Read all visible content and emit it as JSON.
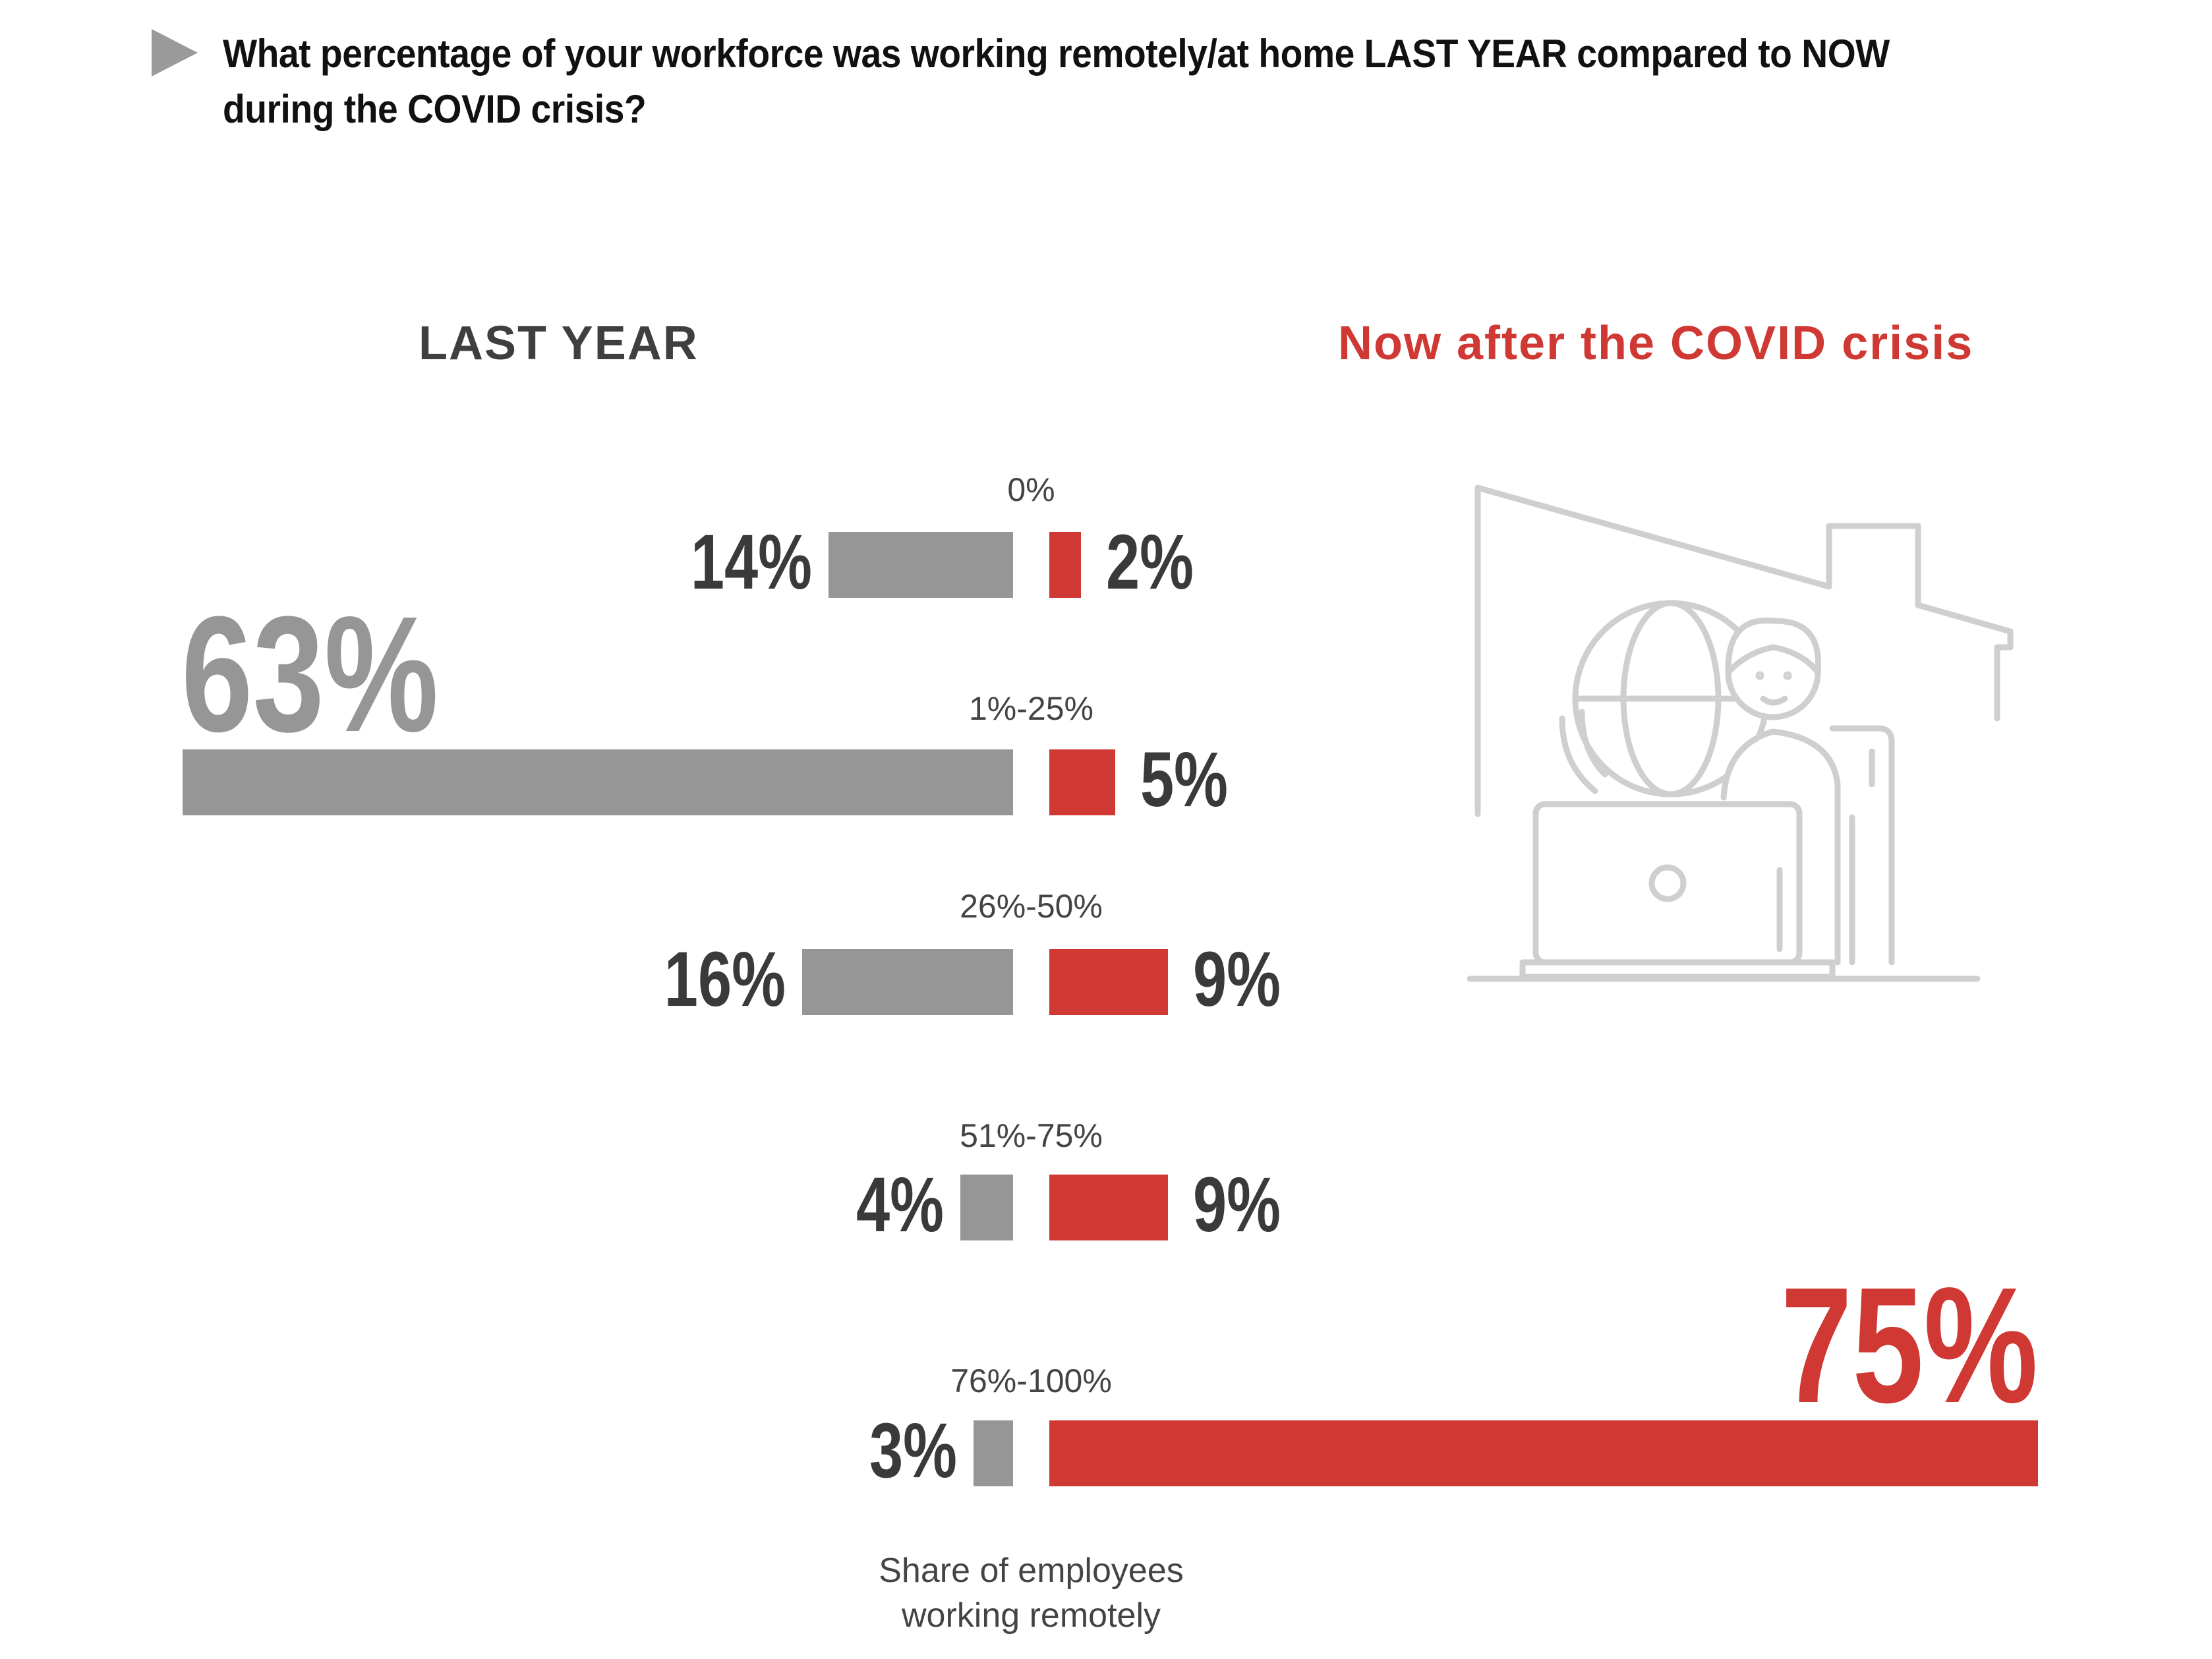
{
  "header": {
    "question": "What percentage of your workforce was working remotely/at home LAST YEAR compared to NOW during the COVID crisis?",
    "bullet_icon": "triangle-right-icon"
  },
  "panels": {
    "last_year_title": "LAST YEAR",
    "now_title": "Now after the COVID crisis"
  },
  "illustration": {
    "icon": "person-working-from-home-icon"
  },
  "colors": {
    "last_year": "#969696",
    "now": "#d03833",
    "label_text": "#3a3a3a",
    "category_text": "#444444",
    "illustration": "#cfcfcf"
  },
  "chart_data": {
    "type": "bar",
    "orientation": "horizontal-diverging",
    "categories": [
      "0%",
      "1%-25%",
      "26%-50%",
      "51%-75%",
      "76%-100%"
    ],
    "series": [
      {
        "name": "LAST YEAR",
        "values": [
          14,
          63,
          16,
          4,
          3
        ],
        "labels": [
          "14%",
          "63%",
          "16%",
          "4%",
          "3%"
        ]
      },
      {
        "name": "Now after the COVID crisis",
        "values": [
          2,
          5,
          9,
          9,
          75
        ],
        "labels": [
          "2%",
          "5%",
          "9%",
          "9%",
          "75%"
        ]
      }
    ],
    "xlabel": "Share of employees working remotely",
    "xlabel_lines": [
      "Share of employees",
      "working remotely"
    ],
    "unit": "%",
    "highlight_max": true
  }
}
